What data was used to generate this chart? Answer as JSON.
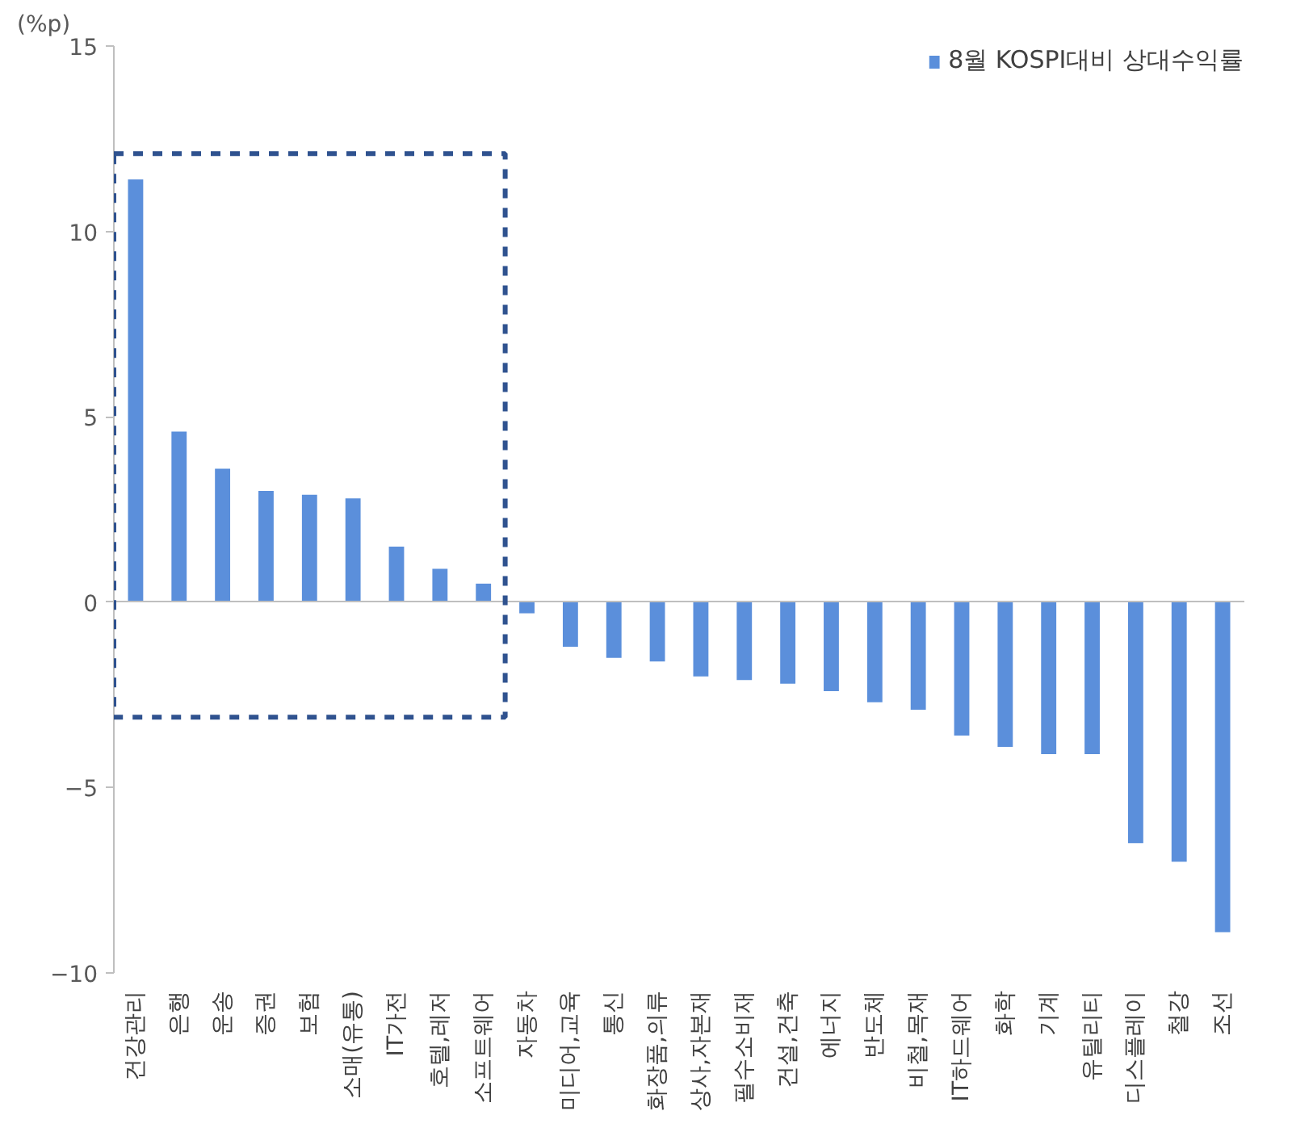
{
  "chart_data": {
    "type": "bar",
    "ylabel": "(%p)",
    "categories": [
      "건강관리",
      "은행",
      "운송",
      "증권",
      "보험",
      "소매(유통)",
      "IT가전",
      "호텔,레저",
      "소프트웨어",
      "자동차",
      "미디어,교육",
      "통신",
      "화장품,의류",
      "상사,자본재",
      "필수소비재",
      "건설,건축",
      "에너지",
      "반도체",
      "비철,목재",
      "IT하드웨어",
      "화학",
      "기계",
      "유틸리티",
      "디스플레이",
      "철강",
      "조선"
    ],
    "series": [
      {
        "name": "8월 KOSPI대비 상대수익률",
        "color": "#5b8fdb",
        "values": [
          11.4,
          4.6,
          3.6,
          3.0,
          2.9,
          2.8,
          1.5,
          0.9,
          0.5,
          -0.3,
          -1.2,
          -1.5,
          -1.6,
          -2.0,
          -2.1,
          -2.2,
          -2.4,
          -2.7,
          -2.9,
          -3.6,
          -3.9,
          -4.1,
          -4.1,
          -6.5,
          -7.0,
          -8.9
        ]
      }
    ],
    "ylim": [
      -10,
      15
    ],
    "yticks": [
      {
        "value": -10,
        "label": "−10"
      },
      {
        "value": -5,
        "label": "−5"
      },
      0,
      5,
      10,
      15
    ],
    "legend": "top right"
  }
}
